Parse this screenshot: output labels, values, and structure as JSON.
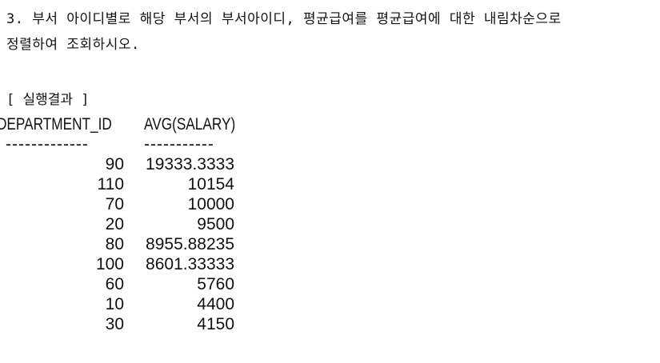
{
  "question": {
    "line1": "3. 부서 아이디별로 해당 부서의 부서아이디, 평균급여를 평균급여에 대한 내림차순으로",
    "line2": "정렬하여 조회하시오."
  },
  "result_label": "[ 실행결과 ]",
  "table": {
    "headers": [
      "DEPARTMENT_ID",
      "AVG(SALARY)"
    ],
    "separators": [
      "-------------",
      "-----------"
    ],
    "rows": [
      {
        "department_id": "90",
        "avg_salary": "19333.3333"
      },
      {
        "department_id": "110",
        "avg_salary": "10154"
      },
      {
        "department_id": "70",
        "avg_salary": "10000"
      },
      {
        "department_id": "20",
        "avg_salary": "9500"
      },
      {
        "department_id": "80",
        "avg_salary": "8955.88235"
      },
      {
        "department_id": "100",
        "avg_salary": "8601.33333"
      },
      {
        "department_id": "60",
        "avg_salary": "5760"
      },
      {
        "department_id": "10",
        "avg_salary": "4400"
      },
      {
        "department_id": "30",
        "avg_salary": "4150"
      }
    ]
  }
}
